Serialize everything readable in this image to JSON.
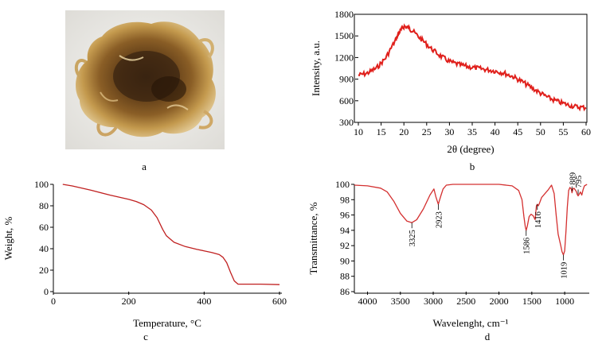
{
  "panels": {
    "a": {
      "label": "a",
      "photo": "photo-of-brown-gel-sample"
    },
    "b": {
      "label": "b"
    },
    "c": {
      "label": "c"
    },
    "d": {
      "label": "d"
    }
  },
  "colors": {
    "b": "#e0201c",
    "c": "#c02020",
    "d": "#d43030"
  },
  "chart_data": [
    {
      "panel": "b",
      "type": "line",
      "xlabel": "2θ (degree)",
      "ylabel": "Intensity, a.u.",
      "xlim": [
        10,
        60
      ],
      "ylim": [
        300,
        1800
      ],
      "xticks": [
        10,
        15,
        20,
        25,
        30,
        35,
        40,
        45,
        50,
        55,
        60
      ],
      "yticks": [
        300,
        600,
        900,
        1200,
        1500,
        1800
      ],
      "grid": false,
      "series": [
        {
          "x": [
            10,
            12,
            14,
            16,
            18,
            19,
            20,
            21,
            22,
            24,
            26,
            28,
            30,
            32,
            34,
            36,
            38,
            40,
            42,
            44,
            46,
            48,
            50,
            52,
            54,
            56,
            58,
            60
          ],
          "y": [
            960,
            990,
            1060,
            1200,
            1430,
            1560,
            1640,
            1620,
            1570,
            1450,
            1330,
            1230,
            1150,
            1110,
            1080,
            1060,
            1040,
            1020,
            990,
            940,
            870,
            790,
            710,
            640,
            590,
            550,
            520,
            510
          ]
        }
      ]
    },
    {
      "panel": "c",
      "type": "line",
      "xlabel": "Temperature, °C",
      "ylabel": "Weight, %",
      "xlim": [
        0,
        600
      ],
      "ylim": [
        0,
        100
      ],
      "xticks": [
        0,
        200,
        400,
        600
      ],
      "yticks": [
        0,
        20,
        40,
        60,
        80,
        100
      ],
      "grid": false,
      "series": [
        {
          "x": [
            25,
            50,
            100,
            150,
            200,
            220,
            240,
            260,
            275,
            290,
            300,
            320,
            350,
            380,
            400,
            420,
            440,
            450,
            460,
            470,
            480,
            490,
            500,
            550,
            600
          ],
          "y": [
            100,
            98.5,
            94.5,
            90,
            86,
            84,
            81,
            76,
            69,
            58,
            52,
            46,
            42,
            39.5,
            38,
            36.5,
            34.5,
            32,
            27,
            18,
            10,
            7,
            7,
            7,
            6.5
          ]
        }
      ]
    },
    {
      "panel": "d",
      "type": "line",
      "xlabel": "Wavelenght, cm⁻¹",
      "ylabel": "Transmittance, %",
      "xlim": [
        4200,
        650
      ],
      "ylim": [
        86,
        100
      ],
      "xticks": [
        4000,
        3500,
        3000,
        2500,
        2000,
        1500,
        1000
      ],
      "yticks": [
        86,
        88,
        90,
        92,
        94,
        96,
        98,
        100
      ],
      "grid": false,
      "series": [
        {
          "x": [
            4200,
            4000,
            3800,
            3700,
            3600,
            3500,
            3400,
            3325,
            3250,
            3150,
            3050,
            2990,
            2960,
            2923,
            2880,
            2850,
            2800,
            2700,
            2000,
            1800,
            1700,
            1650,
            1620,
            1600,
            1586,
            1570,
            1540,
            1510,
            1480,
            1450,
            1430,
            1416,
            1400,
            1380,
            1350,
            1300,
            1250,
            1200,
            1160,
            1130,
            1100,
            1060,
            1040,
            1019,
            1000,
            980,
            960,
            940,
            920,
            900,
            889,
            875,
            860,
            840,
            820,
            810,
            795,
            780,
            760,
            740,
            720,
            700,
            680,
            660
          ],
          "y": [
            99.9,
            99.8,
            99.5,
            99,
            97.8,
            96.2,
            95.2,
            95,
            95.4,
            96.8,
            98.6,
            99.4,
            98.4,
            97.4,
            98.6,
            99.4,
            99.9,
            100,
            100,
            99.8,
            99.2,
            98,
            95.8,
            94.5,
            94,
            94.5,
            95.8,
            96.1,
            95.9,
            95.4,
            97.2,
            97.4,
            97.2,
            97.6,
            98.3,
            98.8,
            99.3,
            99.9,
            98.8,
            96,
            93.5,
            92,
            91.2,
            90.8,
            91.3,
            94,
            97,
            99.2,
            99.6,
            99.4,
            98.9,
            99.4,
            99.5,
            99.3,
            99,
            98.7,
            98.5,
            98.7,
            99,
            98.6,
            99.3,
            99.8,
            99.9,
            100
          ]
        }
      ],
      "annotations": [
        {
          "label": "3325",
          "x": 3325
        },
        {
          "label": "2923",
          "x": 2923
        },
        {
          "label": "1586",
          "x": 1586
        },
        {
          "label": "1416",
          "x": 1416
        },
        {
          "label": "1019",
          "x": 1019
        },
        {
          "label": "889",
          "x": 889
        },
        {
          "label": "795",
          "x": 795
        }
      ]
    }
  ]
}
